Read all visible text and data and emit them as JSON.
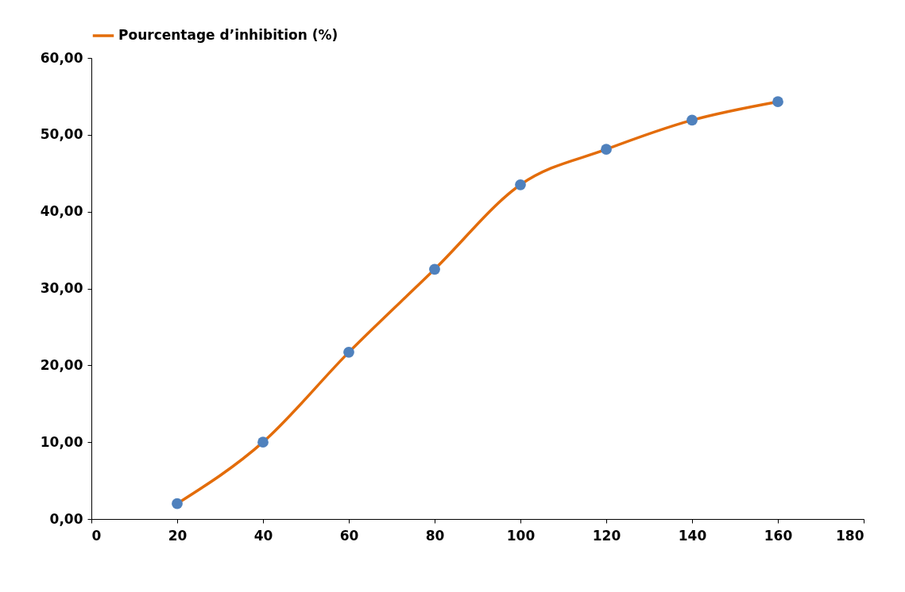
{
  "chart_data": {
    "type": "line",
    "x": [
      20,
      40,
      60,
      80,
      100,
      120,
      140,
      160
    ],
    "series": [
      {
        "name": "Pourcentage d’inhibition (%)",
        "color": "#e36c0a",
        "colors": [
          "#4f81bd",
          "#4f81bd",
          "#4f81bd",
          "#4f81bd",
          "#4f81bd",
          "#4f81bd",
          "#4f81bd",
          "#4f81bd"
        ],
        "values": [
          2.0,
          10.0,
          21.7,
          32.5,
          43.5,
          48.1,
          51.9,
          54.3
        ]
      }
    ],
    "xlim": [
      0,
      180
    ],
    "xticks": [
      0,
      20,
      40,
      60,
      80,
      100,
      120,
      140,
      160,
      180
    ],
    "ylim": [
      0,
      60
    ],
    "yticks": [
      {
        "value": 0,
        "label": "0,00"
      },
      {
        "value": 10,
        "label": "10,00"
      },
      {
        "value": 20,
        "label": "20,00"
      },
      {
        "value": 30,
        "label": "30,00"
      },
      {
        "value": 40,
        "label": "40,00"
      },
      {
        "value": 50,
        "label": "50,00"
      },
      {
        "value": 60,
        "label": "60,00"
      }
    ],
    "grid": false,
    "legend": "top",
    "marker": "circle",
    "line_style": "solid"
  }
}
